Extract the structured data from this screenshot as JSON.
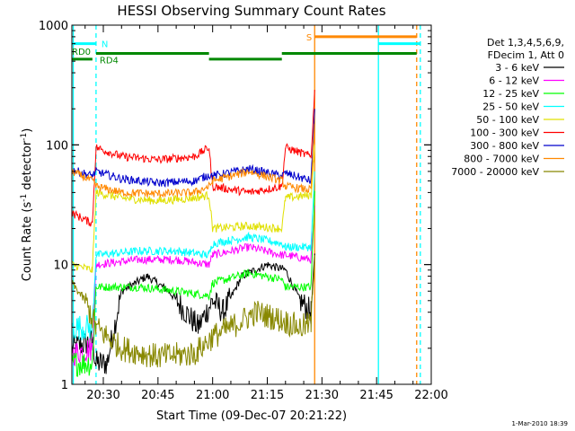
{
  "chart_data": {
    "type": "line",
    "title": "HESSI Observing Summary Count Rates",
    "xlabel": "Start Time (09-Dec-07 20:21:22)",
    "ylabel": "Count Rate (s",
    "ylabel_sup": "-1",
    "ylabel_tail": " detector",
    "ylabel_tail_sup": "-1",
    "ylabel_close": ")",
    "y_scale": "log",
    "ylim": [
      1,
      1000
    ],
    "xlim": [
      "20:21:22",
      "22:00:00"
    ],
    "x_tick_labels": [
      "20:30",
      "20:45",
      "21:00",
      "21:15",
      "21:30",
      "21:45",
      "22:00"
    ],
    "y_tick_labels": [
      "1",
      "10",
      "100",
      "1000"
    ],
    "grid": false,
    "legend_placement": "right",
    "legend_header": [
      "Det 1,3,4,5,6,9,",
      "FDecim 1, Att 0"
    ],
    "series": [
      {
        "name": "3 - 6 keV",
        "color": "#000000",
        "x": [
          "20:21:22",
          "20:27",
          "20:28",
          "20:31",
          "20:35",
          "20:42",
          "20:48",
          "20:56",
          "21:00",
          "21:03",
          "21:08",
          "21:15",
          "21:20",
          "21:24",
          "21:27",
          "21:28"
        ],
        "values": [
          2.0,
          2.3,
          1.5,
          1.5,
          6.0,
          8.0,
          6.0,
          3.0,
          5.0,
          4.0,
          8.0,
          10.0,
          9.0,
          5.0,
          4.0,
          12.0
        ]
      },
      {
        "name": "6 - 12 keV",
        "color": "#ff00ff",
        "x": [
          "20:21:22",
          "20:27",
          "20:28",
          "20:40",
          "20:50",
          "20:59",
          "21:00",
          "21:10",
          "21:19",
          "21:20",
          "21:27",
          "21:28"
        ],
        "values": [
          1.8,
          2.0,
          10.0,
          11.0,
          11.0,
          10.0,
          12.0,
          14.0,
          12.0,
          12.0,
          11.0,
          30.0
        ]
      },
      {
        "name": "12 - 25 keV",
        "color": "#00ff00",
        "x": [
          "20:21:22",
          "20:27",
          "20:28",
          "20:40",
          "20:50",
          "20:59",
          "21:00",
          "21:10",
          "21:19",
          "21:20",
          "21:27",
          "21:28"
        ],
        "values": [
          1.5,
          1.5,
          6.5,
          6.5,
          6.0,
          5.5,
          7.0,
          8.5,
          7.5,
          6.5,
          6.5,
          40.0
        ]
      },
      {
        "name": "25 - 50 keV",
        "color": "#00ffff",
        "x": [
          "20:21:22",
          "20:27",
          "20:28",
          "20:40",
          "20:50",
          "20:59",
          "21:00",
          "21:10",
          "21:19",
          "21:20",
          "21:27",
          "21:28"
        ],
        "values": [
          3.0,
          3.0,
          12.0,
          13.0,
          13.0,
          12.0,
          15.0,
          17.0,
          15.0,
          14.0,
          14.0,
          60.0
        ]
      },
      {
        "name": "50 - 100 keV",
        "color": "#e0e000",
        "x": [
          "20:21:22",
          "20:27",
          "20:28",
          "20:35",
          "20:45",
          "20:55",
          "20:59",
          "21:00",
          "21:10",
          "21:19",
          "21:20",
          "21:27",
          "21:28"
        ],
        "values": [
          10.0,
          9.0,
          40.0,
          36.0,
          34.0,
          36.0,
          38.0,
          20.0,
          21.0,
          20.0,
          36.0,
          38.0,
          100.0
        ]
      },
      {
        "name": "100 - 300 keV",
        "color": "#ff0000",
        "x": [
          "20:21:22",
          "20:27",
          "20:28",
          "20:35",
          "20:45",
          "20:55",
          "20:59",
          "21:00",
          "21:10",
          "21:19",
          "21:20",
          "21:27",
          "21:28"
        ],
        "values": [
          27.0,
          22.0,
          95.0,
          80.0,
          75.0,
          80.0,
          95.0,
          45.0,
          40.0,
          45.0,
          95.0,
          80.0,
          280.0
        ]
      },
      {
        "name": "300 - 800 keV",
        "color": "#0000cc",
        "x": [
          "20:21:22",
          "20:27",
          "20:28",
          "20:35",
          "20:45",
          "20:55",
          "20:59",
          "21:00",
          "21:10",
          "21:19",
          "21:20",
          "21:27",
          "21:28"
        ],
        "values": [
          62.0,
          55.0,
          60.0,
          52.0,
          48.0,
          50.0,
          56.0,
          55.0,
          63.0,
          55.0,
          58.0,
          50.0,
          200.0
        ]
      },
      {
        "name": "800 - 7000 keV",
        "color": "#ff8800",
        "x": [
          "20:21:22",
          "20:27",
          "20:28",
          "20:35",
          "20:45",
          "20:55",
          "20:59",
          "21:00",
          "21:10",
          "21:19",
          "21:20",
          "21:27",
          "21:28"
        ],
        "values": [
          60.0,
          50.0,
          45.0,
          40.0,
          39.0,
          40.0,
          45.0,
          50.0,
          60.0,
          50.0,
          45.0,
          42.0,
          150.0
        ]
      },
      {
        "name": "7000 - 20000 keV",
        "color": "#888800",
        "x": [
          "20:21:22",
          "20:25",
          "20:28",
          "20:31",
          "20:35",
          "20:45",
          "20:55",
          "21:00",
          "21:05",
          "21:12",
          "21:18",
          "21:24",
          "21:27",
          "21:28"
        ],
        "values": [
          7.0,
          5.0,
          3.0,
          2.5,
          2.0,
          1.7,
          1.8,
          2.5,
          3.0,
          4.0,
          3.5,
          3.0,
          3.2,
          12.0
        ]
      }
    ],
    "vertical_lines": [
      {
        "time": "20:21:45",
        "color": "#00ffff",
        "style": "solid"
      },
      {
        "time": "20:28:00",
        "color": "#00ffff",
        "style": "dashed"
      },
      {
        "time": "21:28:00",
        "color": "#ff8800",
        "style": "solid"
      },
      {
        "time": "21:45:30",
        "color": "#00ffff",
        "style": "solid"
      },
      {
        "time": "21:56:00",
        "color": "#ff8800",
        "style": "dashed"
      },
      {
        "time": "21:57:00",
        "color": "#00ffff",
        "style": "dashed"
      }
    ],
    "flag_bars": [
      {
        "label": "N",
        "color": "#00ffff",
        "level": 700,
        "segments": [
          [
            "20:21:30",
            "20:28:00"
          ],
          [
            "21:45:30",
            "21:57:00"
          ]
        ]
      },
      {
        "label": "S",
        "color": "#ff8800",
        "level": 800,
        "segments": [
          [
            "21:28:00",
            "21:56:00"
          ]
        ]
      },
      {
        "label": "RD0",
        "color": "#008800",
        "level": 520,
        "segments": [
          [
            "20:21:30",
            "20:27:00"
          ]
        ]
      },
      {
        "label": "RD4",
        "color": "#008800",
        "level": 580,
        "segments": [
          [
            "20:28:00",
            "20:59:00"
          ],
          [
            "21:19:00",
            "21:56:00"
          ]
        ]
      },
      {
        "label": "",
        "color": "#008800",
        "level": 520,
        "segments": [
          [
            "20:59:00",
            "21:19:00"
          ]
        ]
      }
    ],
    "footer_date": "1-Mar-2010 18:39"
  }
}
